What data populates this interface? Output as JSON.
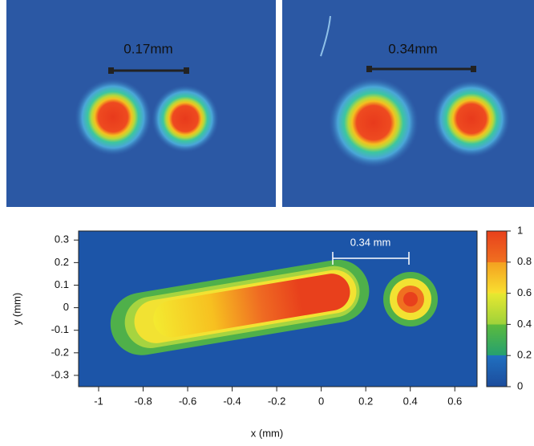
{
  "images": [
    {
      "scale_label": "0.17mm"
    },
    {
      "scale_label": "0.34mm"
    }
  ],
  "chart_data": {
    "type": "heatmap",
    "xlabel": "x (mm)",
    "ylabel": "y (mm)",
    "xlim": [
      -1.09,
      0.7
    ],
    "ylim": [
      -0.35,
      0.34
    ],
    "xticks": [
      -1,
      -0.8,
      -0.6,
      -0.4,
      -0.2,
      0,
      0.2,
      0.4,
      0.6
    ],
    "yticks": [
      -0.3,
      -0.2,
      -0.1,
      0,
      0.1,
      0.2,
      0.3
    ],
    "annotation": "0.34 mm",
    "colorbar": {
      "lim": [
        0,
        1
      ],
      "ticks": [
        0,
        0.2,
        0.4,
        0.6,
        0.8,
        1
      ]
    }
  }
}
